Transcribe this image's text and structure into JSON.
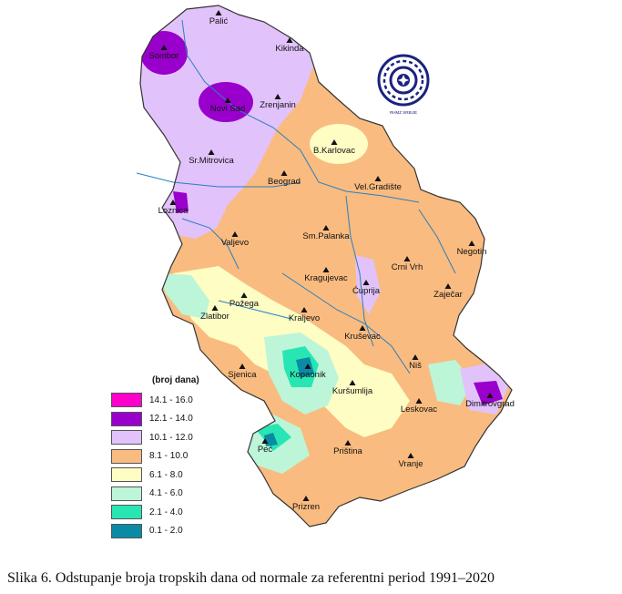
{
  "map": {
    "cities": [
      {
        "id": "palic",
        "name": "Palić"
      },
      {
        "id": "kikinda",
        "name": "Kikinda"
      },
      {
        "id": "sombor",
        "name": "Sombor"
      },
      {
        "id": "novi-sad",
        "name": "Novi Sad"
      },
      {
        "id": "zrenjanin",
        "name": "Zrenjanin"
      },
      {
        "id": "b-karlovac",
        "name": "B.Karlovac"
      },
      {
        "id": "sr-mitrovica",
        "name": "Sr.Mitrovica"
      },
      {
        "id": "beograd",
        "name": "Beograd"
      },
      {
        "id": "vel-gradiste",
        "name": "Vel.Gradište"
      },
      {
        "id": "loznica",
        "name": "Loznica"
      },
      {
        "id": "valjevo",
        "name": "Valjevo"
      },
      {
        "id": "sm-palanka",
        "name": "Sm.Palanka"
      },
      {
        "id": "negotin",
        "name": "Negotin"
      },
      {
        "id": "crni-vrh",
        "name": "Crni Vrh"
      },
      {
        "id": "kragujevac",
        "name": "Kragujevac"
      },
      {
        "id": "cuprija",
        "name": "Ćuprija"
      },
      {
        "id": "zajecar",
        "name": "Zaječar"
      },
      {
        "id": "pozega",
        "name": "Požega"
      },
      {
        "id": "zlatibor",
        "name": "Zlatibor"
      },
      {
        "id": "kraljevo",
        "name": "Kraljevo"
      },
      {
        "id": "krusevac",
        "name": "Kruševac"
      },
      {
        "id": "nis",
        "name": "Niš"
      },
      {
        "id": "sjenica",
        "name": "Sjenica"
      },
      {
        "id": "kopaonik",
        "name": "Kopaonik"
      },
      {
        "id": "kursumlija",
        "name": "Kuršumlija"
      },
      {
        "id": "dimitrovgrad",
        "name": "Dimitrovgrad"
      },
      {
        "id": "leskovac",
        "name": "Leskovac"
      },
      {
        "id": "pec",
        "name": "Peć"
      },
      {
        "id": "pristina",
        "name": "Priština"
      },
      {
        "id": "vranje",
        "name": "Vranje"
      },
      {
        "id": "prizren",
        "name": "Prizren"
      }
    ],
    "logo_text": "RHMZ SRBIJE"
  },
  "legend": {
    "title": "(broj dana)",
    "items": [
      {
        "label": "14.1 - 16.0",
        "color": "#ff00cc"
      },
      {
        "label": "12.1 - 14.0",
        "color": "#9900cc"
      },
      {
        "label": "10.1 - 12.0",
        "color": "#e2c2fa"
      },
      {
        "label": "8.1 - 10.0",
        "color": "#f9bb7f"
      },
      {
        "label": "6.1 - 8.0",
        "color": "#fdfdc4"
      },
      {
        "label": "4.1 - 6.0",
        "color": "#bdf5d8"
      },
      {
        "label": "2.1 - 4.0",
        "color": "#27e6b4"
      },
      {
        "label": "0.1 - 2.0",
        "color": "#0b8aa6"
      }
    ]
  },
  "caption": "Slika 6. Odstupanje broja tropskih dana od normale za referentni period 1991–2020"
}
